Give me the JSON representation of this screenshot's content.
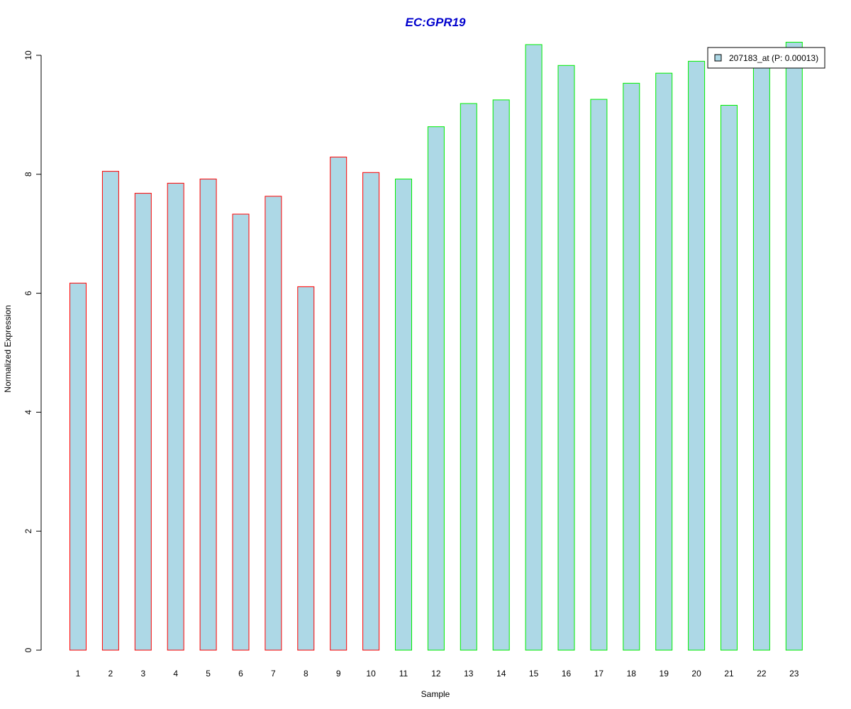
{
  "chart_data": {
    "type": "bar",
    "title": "EC:GPR19",
    "xlabel": "Sample",
    "ylabel": "Normalized Expression",
    "categories": [
      "1",
      "2",
      "3",
      "4",
      "5",
      "6",
      "7",
      "8",
      "9",
      "10",
      "11",
      "12",
      "13",
      "14",
      "15",
      "16",
      "17",
      "18",
      "19",
      "20",
      "21",
      "22",
      "23"
    ],
    "series": [
      {
        "name": "207183_at (P: 0.00013)",
        "values": [
          6.17,
          8.05,
          7.68,
          7.85,
          7.92,
          7.33,
          7.63,
          6.11,
          8.29,
          8.03,
          7.92,
          8.8,
          9.19,
          9.25,
          10.18,
          9.83,
          9.26,
          9.53,
          9.7,
          9.9,
          9.16,
          9.85,
          10.22
        ]
      }
    ],
    "groups": [
      {
        "samples": [
          1,
          2,
          3,
          4,
          5,
          6,
          7,
          8,
          9,
          10
        ],
        "border_color": "#ff0000"
      },
      {
        "samples": [
          11,
          12,
          13,
          14,
          15,
          16,
          17,
          18,
          19,
          20,
          21,
          22,
          23
        ],
        "border_color": "#00ee00"
      }
    ],
    "bar_fill": "#add8e6",
    "title_color": "#0000cd",
    "ylim": [
      0,
      10.3
    ],
    "yticks": [
      0,
      2,
      4,
      6,
      8,
      10
    ],
    "legend_position": "top-right",
    "grid": false
  }
}
